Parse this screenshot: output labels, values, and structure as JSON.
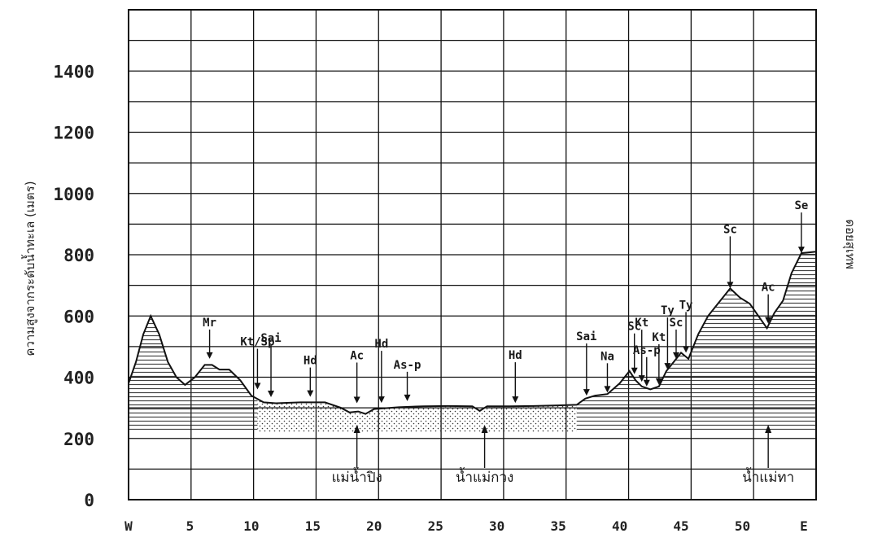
{
  "chart_data": {
    "type": "area",
    "ylabel": "ความสูงจากระดับน้ำทะเล (เมตร)",
    "right_label": "ดอยสุเทพ",
    "yticks": [
      "0",
      "200",
      "400",
      "600",
      "800",
      "1000",
      "1200",
      "1400"
    ],
    "xticks": [
      "W",
      "5",
      "10",
      "15",
      "20",
      "25",
      "30",
      "35",
      "40",
      "45",
      "50",
      "E"
    ],
    "xlim": [
      0,
      56
    ],
    "ylim": [
      0,
      1600
    ],
    "grid": true,
    "profile": [
      [
        0,
        380
      ],
      [
        0.6,
        450
      ],
      [
        1.2,
        540
      ],
      [
        1.8,
        600
      ],
      [
        2.5,
        540
      ],
      [
        3.2,
        450
      ],
      [
        3.9,
        400
      ],
      [
        4.6,
        375
      ],
      [
        5.4,
        400
      ],
      [
        6.2,
        440
      ],
      [
        6.8,
        440
      ],
      [
        7.4,
        425
      ],
      [
        8.2,
        425
      ],
      [
        9.1,
        390
      ],
      [
        10,
        340
      ],
      [
        11,
        318
      ],
      [
        12,
        315
      ],
      [
        14,
        318
      ],
      [
        16,
        318
      ],
      [
        17.3,
        300
      ],
      [
        18,
        285
      ],
      [
        18.7,
        288
      ],
      [
        19.3,
        280
      ],
      [
        20,
        296
      ],
      [
        22,
        302
      ],
      [
        24,
        305
      ],
      [
        26,
        306
      ],
      [
        28,
        305
      ],
      [
        28.6,
        290
      ],
      [
        29.2,
        305
      ],
      [
        31,
        305
      ],
      [
        33,
        306
      ],
      [
        35,
        308
      ],
      [
        36.5,
        310
      ],
      [
        37.2,
        330
      ],
      [
        38,
        340
      ],
      [
        39,
        345
      ],
      [
        40,
        380
      ],
      [
        40.8,
        420
      ],
      [
        41.3,
        390
      ],
      [
        41.8,
        370
      ],
      [
        42.5,
        360
      ],
      [
        43.2,
        370
      ],
      [
        43.8,
        420
      ],
      [
        44.4,
        450
      ],
      [
        45,
        480
      ],
      [
        45.6,
        460
      ],
      [
        46.4,
        540
      ],
      [
        47.2,
        600
      ],
      [
        48.2,
        650
      ],
      [
        49,
        690
      ],
      [
        49.8,
        660
      ],
      [
        50.6,
        640
      ],
      [
        51.3,
        600
      ],
      [
        52,
        560
      ],
      [
        52.6,
        610
      ],
      [
        53.3,
        650
      ],
      [
        54,
        740
      ],
      [
        54.8,
        805
      ],
      [
        56,
        810
      ]
    ],
    "labels": [
      {
        "text": "Mr",
        "x": 6.6,
        "y": 460
      },
      {
        "text": "Kt/Sp",
        "x": 10.5,
        "y": 360
      },
      {
        "text": "Sai",
        "x": 11.6,
        "y": 335
      },
      {
        "text": "Hd",
        "x": 14.8,
        "y": 336
      },
      {
        "text": "Ac",
        "x": 18.6,
        "y": 315
      },
      {
        "text": "Hd",
        "x": 20.6,
        "y": 316
      },
      {
        "text": "As-p",
        "x": 22.7,
        "y": 322
      },
      {
        "text": "Hd",
        "x": 31.5,
        "y": 316
      },
      {
        "text": "Sai",
        "x": 37.3,
        "y": 340
      },
      {
        "text": "Na",
        "x": 39,
        "y": 350
      },
      {
        "text": "Sc",
        "x": 41.2,
        "y": 410
      },
      {
        "text": "Kt",
        "x": 41.8,
        "y": 385
      },
      {
        "text": "As-p",
        "x": 42.2,
        "y": 370
      },
      {
        "text": "Kt",
        "x": 43.2,
        "y": 375
      },
      {
        "text": "Ty",
        "x": 43.9,
        "y": 425
      },
      {
        "text": "Sc",
        "x": 44.6,
        "y": 460
      },
      {
        "text": "Ty",
        "x": 45.4,
        "y": 480
      },
      {
        "text": "Sc",
        "x": 49,
        "y": 690
      },
      {
        "text": "Ac",
        "x": 52.1,
        "y": 575
      },
      {
        "text": "Se",
        "x": 54.8,
        "y": 805
      }
    ],
    "rivers": [
      {
        "text": "แม่น้ำปิง",
        "x": 18.6
      },
      {
        "text": "น้ำแม่กวง",
        "x": 29
      },
      {
        "text": "น้ำแม่ทา",
        "x": 52.1
      }
    ]
  }
}
